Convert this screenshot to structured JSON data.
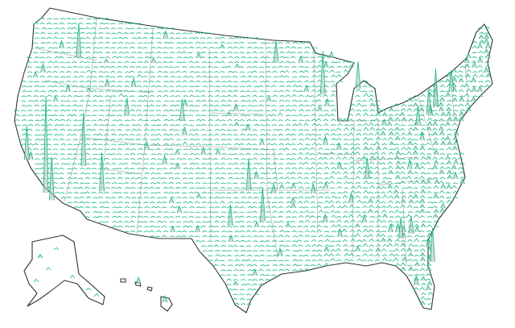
{
  "map": {
    "type": "spike-map",
    "region": "United States",
    "colors": {
      "spike_stroke": "#12b886",
      "spike_fill": "#b9c4bf",
      "border": "#2b3440",
      "state_border": "#8a8f96",
      "background": "#ffffff"
    },
    "major_spikes": [
      {
        "lon": -118.2,
        "lat": 34.05,
        "value": 100
      },
      {
        "lon": -117.2,
        "lat": 33.2,
        "value": 45
      },
      {
        "lon": -115.1,
        "lat": 36.2,
        "value": 55
      },
      {
        "lon": -112.1,
        "lat": 33.45,
        "value": 40
      },
      {
        "lon": -122.3,
        "lat": 47.6,
        "value": 35
      },
      {
        "lon": -122.3,
        "lat": 37.8,
        "value": 35
      },
      {
        "lon": -104.9,
        "lat": 39.7,
        "value": 22
      },
      {
        "lon": -111.9,
        "lat": 40.7,
        "value": 18
      },
      {
        "lon": -87.6,
        "lat": 41.9,
        "value": 45
      },
      {
        "lon": -83.0,
        "lat": 42.35,
        "value": 28
      },
      {
        "lon": -93.3,
        "lat": 45.0,
        "value": 22
      },
      {
        "lon": -96.8,
        "lat": 32.8,
        "value": 32
      },
      {
        "lon": -95.4,
        "lat": 29.8,
        "value": 35
      },
      {
        "lon": -98.5,
        "lat": 29.4,
        "value": 22
      },
      {
        "lon": -84.4,
        "lat": 33.75,
        "value": 22
      },
      {
        "lon": -80.2,
        "lat": 25.8,
        "value": 35
      },
      {
        "lon": -82.5,
        "lat": 28.0,
        "value": 22
      },
      {
        "lon": -81.4,
        "lat": 28.5,
        "value": 18
      },
      {
        "lon": -74.0,
        "lat": 40.7,
        "value": 40
      },
      {
        "lon": -75.2,
        "lat": 40.0,
        "value": 25
      },
      {
        "lon": -71.06,
        "lat": 42.36,
        "value": 22
      },
      {
        "lon": -77.0,
        "lat": 38.9,
        "value": 20
      }
    ]
  }
}
